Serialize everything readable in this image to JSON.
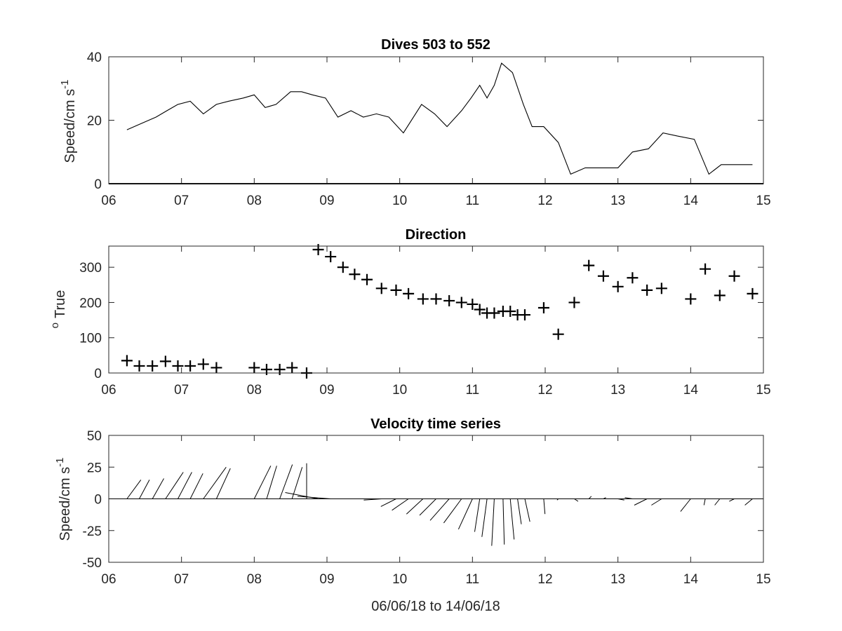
{
  "chart_data": [
    {
      "type": "line",
      "title": "Dives 503 to 552",
      "xlabel": "",
      "ylabel": "Speed/cm s",
      "ylabel_superscript": "-1",
      "xlim": [
        6,
        15
      ],
      "ylim": [
        0,
        40
      ],
      "x_ticks": [
        "06",
        "07",
        "08",
        "09",
        "10",
        "11",
        "12",
        "13",
        "14",
        "15"
      ],
      "y_ticks": [
        "0",
        "20",
        "40"
      ],
      "series": [
        {
          "x": [
            6.25,
            6.45,
            6.65,
            6.8,
            6.95,
            7.12,
            7.3,
            7.48,
            7.65,
            7.85,
            8.0,
            8.15,
            8.3,
            8.5,
            8.65,
            8.8,
            8.98,
            9.15,
            9.33,
            9.5,
            9.68,
            9.85,
            10.05,
            10.3,
            10.48,
            10.65,
            10.85,
            10.98,
            11.1,
            11.2,
            11.3,
            11.4,
            11.55,
            11.7,
            11.82,
            11.98,
            12.18,
            12.35,
            12.55,
            12.78,
            13.0,
            13.2,
            13.42,
            13.62,
            13.82,
            14.05,
            14.25,
            14.42,
            14.62,
            14.85
          ],
          "y": [
            17,
            19,
            21,
            23,
            25,
            26,
            22,
            25,
            26,
            27,
            28,
            24,
            25,
            29,
            29,
            28,
            27,
            21,
            23,
            21,
            22,
            21,
            16,
            25,
            22,
            18,
            23,
            27,
            31,
            27,
            31,
            38,
            35,
            25,
            18,
            18,
            13,
            3,
            5,
            5,
            5,
            10,
            11,
            16,
            15,
            14,
            3,
            6,
            6,
            6
          ]
        }
      ]
    },
    {
      "type": "scatter",
      "title": "Direction",
      "xlabel": "",
      "ylabel": "True",
      "ylabel_superscript": "o",
      "xlim": [
        6,
        15
      ],
      "ylim": [
        0,
        360
      ],
      "x_ticks": [
        "06",
        "07",
        "08",
        "09",
        "10",
        "11",
        "12",
        "13",
        "14",
        "15"
      ],
      "y_ticks": [
        "0",
        "100",
        "200",
        "300"
      ],
      "series": [
        {
          "x": [
            6.25,
            6.42,
            6.6,
            6.78,
            6.95,
            7.12,
            7.3,
            7.48,
            8.0,
            8.17,
            8.35,
            8.52,
            8.72,
            8.88,
            9.05,
            9.22,
            9.38,
            9.55,
            9.75,
            9.95,
            10.12,
            10.32,
            10.5,
            10.68,
            10.85,
            11.0,
            11.1,
            11.2,
            11.3,
            11.42,
            11.52,
            11.62,
            11.72,
            11.98,
            12.18,
            12.4,
            12.6,
            12.8,
            13.0,
            13.2,
            13.4,
            13.6,
            14.0,
            14.2,
            14.4,
            14.6,
            14.85
          ],
          "y": [
            35,
            20,
            20,
            33,
            20,
            20,
            25,
            15,
            15,
            10,
            10,
            15,
            0,
            350,
            330,
            300,
            280,
            265,
            240,
            235,
            225,
            210,
            210,
            205,
            200,
            195,
            180,
            170,
            170,
            175,
            175,
            165,
            165,
            185,
            110,
            200,
            305,
            275,
            245,
            270,
            235,
            240,
            210,
            295,
            220,
            275,
            225
          ]
        }
      ]
    },
    {
      "type": "line",
      "subtype": "stick",
      "title": "Velocity time series",
      "xlabel": "06/06/18 to 14/06/18",
      "ylabel": "Speed/cm s",
      "ylabel_superscript": "-1",
      "xlim": [
        6,
        15
      ],
      "ylim": [
        -50,
        50
      ],
      "x_ticks": [
        "06",
        "07",
        "08",
        "09",
        "10",
        "11",
        "12",
        "13",
        "14",
        "15"
      ],
      "y_ticks": [
        "-50",
        "-25",
        "0",
        "25",
        "50"
      ],
      "series": [
        {
          "x": [
            6.25,
            6.42,
            6.6,
            6.78,
            6.95,
            7.12,
            7.3,
            7.48,
            8.0,
            8.17,
            8.35,
            8.52,
            8.72,
            8.88,
            9.05,
            9.22,
            9.38,
            9.55,
            9.75,
            9.95,
            10.12,
            10.32,
            10.5,
            10.68,
            10.85,
            11.0,
            11.1,
            11.2,
            11.3,
            11.42,
            11.52,
            11.62,
            11.72,
            11.98,
            12.18,
            12.4,
            12.6,
            12.8,
            13.0,
            13.2,
            13.4,
            13.6,
            14.0,
            14.2,
            14.4,
            14.6,
            14.85
          ],
          "u": [
            11,
            8,
            9,
            14,
            11,
            10,
            18,
            11,
            13,
            8,
            10,
            8,
            0,
            -26,
            -26,
            -13,
            -11,
            -13,
            -14,
            -12,
            -13,
            -13,
            -13,
            -15,
            -14,
            -11,
            -4,
            -4,
            -2,
            1,
            3,
            3,
            4,
            1,
            -1,
            3,
            2,
            2,
            5,
            -6,
            -10,
            -8,
            -8,
            -1,
            -4,
            -4,
            -6
          ],
          "v": [
            15,
            15,
            16,
            21,
            21,
            20,
            25,
            24,
            26,
            26,
            27,
            25,
            28,
            5,
            2,
            0,
            0,
            0,
            -1,
            -6,
            -9,
            -12,
            -13,
            -17,
            -19,
            -24,
            -26,
            -30,
            -37,
            -36,
            -32,
            -20,
            -18,
            -12,
            -1,
            -2,
            2,
            1,
            -1,
            1,
            -5,
            -5,
            -10,
            -5,
            -5,
            -2,
            -5
          ]
        }
      ]
    }
  ]
}
